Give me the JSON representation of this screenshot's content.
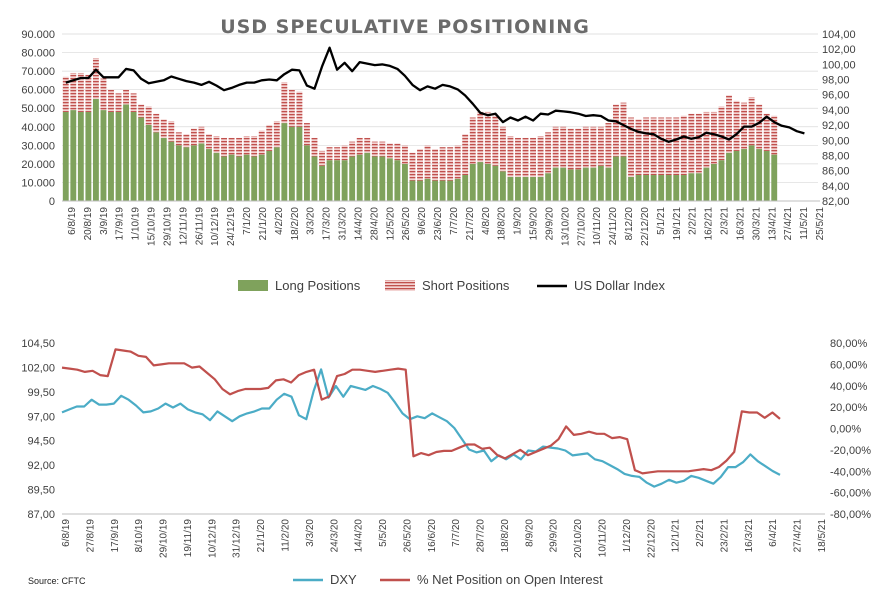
{
  "source": "Source: CFTC",
  "colors": {
    "long": "#7fa25c",
    "short": "#c0504d",
    "usd": "#000000",
    "dxy": "#4bacc6",
    "net": "#c0504d",
    "axis": "#bfbfbf"
  },
  "chart_data": [
    {
      "type": "bar",
      "title": "USD SPECULATIVE POSITIONING",
      "stacked": true,
      "x_tick_labels": [
        "6/8/19",
        "20/8/19",
        "3/9/19",
        "17/9/19",
        "1/10/19",
        "15/10/19",
        "29/10/19",
        "12/11/19",
        "26/11/19",
        "10/12/19",
        "24/12/19",
        "7/1/20",
        "21/1/20",
        "4/2/20",
        "18/2/20",
        "3/3/20",
        "17/3/20",
        "31/3/20",
        "14/4/20",
        "28/4/20",
        "12/5/20",
        "26/5/20",
        "9/6/20",
        "23/6/20",
        "7/7/20",
        "21/7/20",
        "4/8/20",
        "18/8/20",
        "1/9/20",
        "15/9/20",
        "29/9/20",
        "13/10/20",
        "27/10/20",
        "10/11/20",
        "24/11/20",
        "8/12/20",
        "22/12/20",
        "5/1/21",
        "19/1/21",
        "2/2/21",
        "16/2/21",
        "2/3/21",
        "16/3/21",
        "30/3/21",
        "13/4/21",
        "27/4/21",
        "11/5/21",
        "25/5/21"
      ],
      "y_left_ticks": [
        "0",
        "10.000",
        "20.000",
        "30.000",
        "40.000",
        "50.000",
        "60.000",
        "70.000",
        "80.000",
        "90.000"
      ],
      "y_right_ticks": [
        "82,00",
        "84,00",
        "86,00",
        "88,00",
        "90,00",
        "92,00",
        "94,00",
        "96,00",
        "98,00",
        "100,00",
        "102,00",
        "104,00"
      ],
      "ylim_left": [
        0,
        90000
      ],
      "ylim_right": [
        82,
        104
      ],
      "series": [
        {
          "name": "Long Positions",
          "values": [
            48000,
            49000,
            48000,
            48000,
            55000,
            49000,
            48000,
            48000,
            52000,
            48000,
            45000,
            41000,
            37000,
            34000,
            32000,
            30000,
            29000,
            30000,
            31000,
            28000,
            26000,
            24000,
            25000,
            24000,
            25000,
            24000,
            25000,
            27000,
            29000,
            42000,
            40000,
            40000,
            30000,
            24000,
            19000,
            22000,
            22000,
            22000,
            24000,
            25000,
            26000,
            24000,
            24000,
            23000,
            22000,
            20000,
            11000,
            11000,
            12000,
            11000,
            11000,
            11000,
            12000,
            14000,
            20000,
            21000,
            20000,
            19000,
            16000,
            13000,
            13000,
            13000,
            13000,
            13000,
            15000,
            18000,
            18000,
            17000,
            17000,
            18000,
            18000,
            19000,
            18000,
            24000,
            24000,
            13000,
            14000,
            14000,
            14000,
            14000,
            14000,
            14000,
            14000,
            15000,
            15000,
            18000,
            20000,
            22000,
            26000,
            27000,
            28000,
            30000,
            28000,
            27000,
            25000
          ]
        },
        {
          "name": "Short Positions",
          "values": [
            19000,
            20000,
            21000,
            20000,
            22000,
            17000,
            12000,
            10000,
            8000,
            10000,
            7000,
            10000,
            10000,
            10000,
            11000,
            7000,
            7000,
            9000,
            9000,
            8000,
            9000,
            10000,
            9000,
            10000,
            10000,
            11000,
            13000,
            14000,
            14000,
            22000,
            20000,
            19000,
            12000,
            10000,
            8000,
            7000,
            7000,
            8000,
            8000,
            9000,
            8000,
            8000,
            8000,
            8000,
            9000,
            10000,
            15000,
            17000,
            18000,
            17000,
            18000,
            18000,
            18000,
            22000,
            25000,
            27000,
            28000,
            27000,
            24000,
            22000,
            21000,
            21000,
            21000,
            22000,
            22000,
            22000,
            22000,
            22000,
            22000,
            22000,
            22000,
            21000,
            24000,
            28000,
            29000,
            32000,
            30000,
            31000,
            31000,
            31000,
            31000,
            31000,
            32000,
            32000,
            32000,
            30000,
            28000,
            29000,
            31000,
            27000,
            25000,
            26000,
            24000,
            20000,
            21000
          ]
        },
        {
          "name": "US Dollar Index",
          "axis": "right",
          "values": [
            97.6,
            97.9,
            98.2,
            98.2,
            99.3,
            98.3,
            98.3,
            98.3,
            99.4,
            99.2,
            98.1,
            97.5,
            97.7,
            97.9,
            98.4,
            98.1,
            97.8,
            97.6,
            97.3,
            97.7,
            97.2,
            96.6,
            96.9,
            97.3,
            97.6,
            97.6,
            97.9,
            98.0,
            97.9,
            98.7,
            99.3,
            99.2,
            97.2,
            96.8,
            99.7,
            102.2,
            99.3,
            100.2,
            99.1,
            100.3,
            100.1,
            99.9,
            100.0,
            99.8,
            99.4,
            98.5,
            97.3,
            96.6,
            97.1,
            96.8,
            97.3,
            97.1,
            96.7,
            95.9,
            94.8,
            93.6,
            93.3,
            93.5,
            92.4,
            93.0,
            92.6,
            93.1,
            92.6,
            93.5,
            93.4,
            93.9,
            93.8,
            93.7,
            93.5,
            93.2,
            93.3,
            93.2,
            92.6,
            92.5,
            92.0,
            91.5,
            91.1,
            90.9,
            90.8,
            90.2,
            89.8,
            90.1,
            90.5,
            90.2,
            90.4,
            91.0,
            90.8,
            90.5,
            90.1,
            90.8,
            91.8,
            91.8,
            92.3,
            93.1,
            92.4,
            91.9,
            91.7,
            91.2,
            90.9
          ]
        }
      ],
      "legend_position": "bottom"
    },
    {
      "type": "line",
      "title": "",
      "x_tick_labels": [
        "6/8/19",
        "27/8/19",
        "17/9/19",
        "8/10/19",
        "29/10/19",
        "19/11/19",
        "10/12/19",
        "31/12/19",
        "21/1/20",
        "11/2/20",
        "3/3/20",
        "24/3/20",
        "14/4/20",
        "5/5/20",
        "26/5/20",
        "16/6/20",
        "7/7/20",
        "28/7/20",
        "18/8/20",
        "8/9/20",
        "29/9/20",
        "20/10/20",
        "10/11/20",
        "1/12/20",
        "22/12/20",
        "12/1/21",
        "2/2/21",
        "23/2/21",
        "16/3/21",
        "6/4/21",
        "27/4/21",
        "18/5/21"
      ],
      "y_left_ticks": [
        "87,00",
        "89,50",
        "92,00",
        "94,50",
        "97,00",
        "99,50",
        "102,00",
        "104,50"
      ],
      "y_right_ticks": [
        "-80,00%",
        "-60,00%",
        "-40,00%",
        "-20,00%",
        "0,00%",
        "20,00%",
        "40,00%",
        "60,00%",
        "80,00%"
      ],
      "ylim_left": [
        87,
        104.5
      ],
      "ylim_right": [
        -80,
        80
      ],
      "series": [
        {
          "name": "DXY",
          "axis": "left",
          "values": [
            97.4,
            97.7,
            98.0,
            98.0,
            98.7,
            98.2,
            98.2,
            98.3,
            99.1,
            98.7,
            98.1,
            97.4,
            97.5,
            97.8,
            98.3,
            97.9,
            98.3,
            97.7,
            97.4,
            97.2,
            96.6,
            97.5,
            97.0,
            96.5,
            97.0,
            97.3,
            97.5,
            97.8,
            97.8,
            98.7,
            99.3,
            99.0,
            97.1,
            96.7,
            99.6,
            101.8,
            98.9,
            100.1,
            99.0,
            100.1,
            99.9,
            99.7,
            100.1,
            99.8,
            99.4,
            98.4,
            97.3,
            96.7,
            97.0,
            96.8,
            97.3,
            96.9,
            96.5,
            95.8,
            94.7,
            93.6,
            93.3,
            93.5,
            92.4,
            93.0,
            92.6,
            93.1,
            92.6,
            93.5,
            93.4,
            93.9,
            93.8,
            93.7,
            93.5,
            93.0,
            93.1,
            93.2,
            92.6,
            92.4,
            92.0,
            91.6,
            91.1,
            90.9,
            90.8,
            90.2,
            89.8,
            90.1,
            90.5,
            90.2,
            90.4,
            90.9,
            90.7,
            90.4,
            90.1,
            90.8,
            91.8,
            91.8,
            92.3,
            93.1,
            92.4,
            91.9,
            91.4,
            91.0
          ]
        },
        {
          "name": "% Net Position on Open Interest",
          "axis": "right",
          "values": [
            57,
            56,
            55,
            53,
            54,
            50,
            49,
            74,
            73,
            72,
            68,
            67,
            59,
            60,
            61,
            61,
            61,
            57,
            58,
            52,
            46,
            37,
            32,
            35,
            37,
            37,
            37,
            38,
            45,
            46,
            43,
            50,
            53,
            55,
            27,
            30,
            49,
            51,
            55,
            55,
            54,
            53,
            54,
            55,
            56,
            55,
            -26,
            -23,
            -25,
            -22,
            -21,
            -21,
            -18,
            -15,
            -15,
            -19,
            -18,
            -25,
            -28,
            -24,
            -20,
            -25,
            -22,
            -19,
            -16,
            -10,
            2,
            -6,
            -5,
            -3,
            -5,
            -5,
            -9,
            -8,
            -10,
            -39,
            -42,
            -41,
            -40,
            -40,
            -40,
            -40,
            -40,
            -39,
            -38,
            -39,
            -36,
            -30,
            -22,
            16,
            15,
            15,
            10,
            15,
            9
          ]
        }
      ],
      "legend_position": "bottom"
    }
  ]
}
